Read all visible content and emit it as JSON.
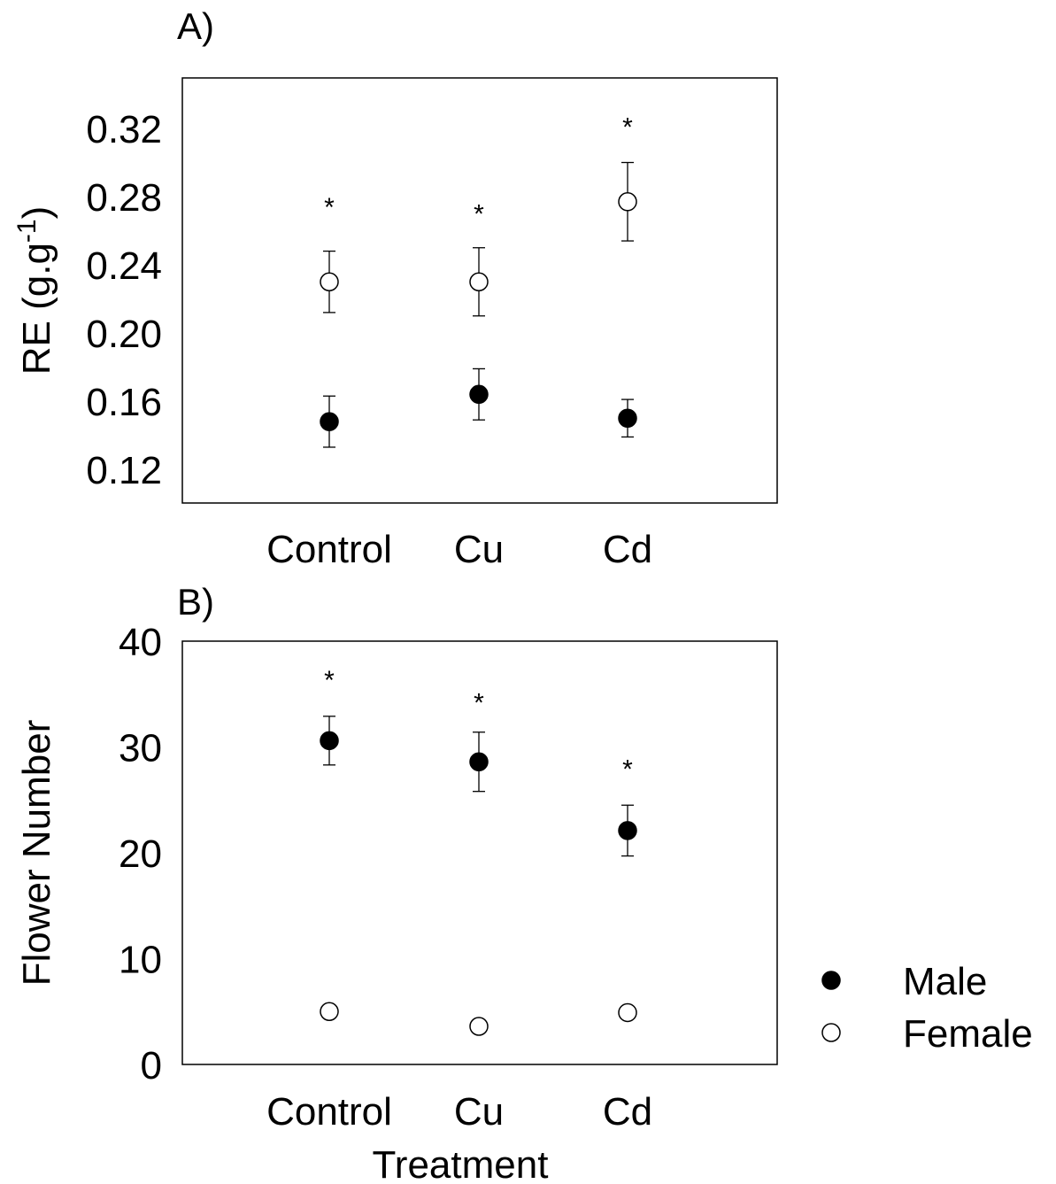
{
  "chart_data": [
    {
      "panel_label": "A)",
      "type": "scatter",
      "categories": [
        "Control",
        "Cu",
        "Cd"
      ],
      "ylabel_main": "RE (g.g",
      "ylabel_sup": "-1",
      "ylabel_end": ")",
      "yticks": [
        "0.12",
        "0.16",
        "0.20",
        "0.24",
        "0.28",
        "0.32"
      ],
      "ylim": [
        0.1,
        0.35
      ],
      "series": [
        {
          "name": "Male",
          "marker": "filled",
          "values": [
            0.148,
            0.164,
            0.15
          ],
          "errors": [
            0.015,
            0.015,
            0.011
          ]
        },
        {
          "name": "Female",
          "marker": "open",
          "values": [
            0.23,
            0.23,
            0.277
          ],
          "errors": [
            0.018,
            0.02,
            0.023
          ]
        }
      ],
      "significance": [
        {
          "category": "Control",
          "label": "*",
          "y": 0.277
        },
        {
          "category": "Cu",
          "label": "*",
          "y": 0.273
        },
        {
          "category": "Cd",
          "label": "*",
          "y": 0.324
        }
      ]
    },
    {
      "panel_label": "B)",
      "type": "scatter",
      "categories": [
        "Control",
        "Cu",
        "Cd"
      ],
      "ylabel": "Flower Number",
      "xlabel": "Treatment",
      "yticks": [
        "0",
        "10",
        "20",
        "30",
        "40"
      ],
      "ylim": [
        0,
        40
      ],
      "series": [
        {
          "name": "Male",
          "marker": "filled",
          "values": [
            30.6,
            28.6,
            22.1
          ],
          "errors": [
            2.3,
            2.8,
            2.4
          ]
        },
        {
          "name": "Female",
          "marker": "open",
          "values": [
            5.0,
            3.6,
            4.9
          ],
          "errors": [
            0,
            0,
            0
          ]
        }
      ],
      "significance": [
        {
          "category": "Control",
          "label": "*",
          "y": 36.8
        },
        {
          "category": "Cu",
          "label": "*",
          "y": 34.7
        },
        {
          "category": "Cd",
          "label": "*",
          "y": 28.4
        }
      ]
    }
  ],
  "legend": {
    "position": "right",
    "items": [
      {
        "label": "Male",
        "marker": "filled"
      },
      {
        "label": "Female",
        "marker": "open"
      }
    ]
  }
}
